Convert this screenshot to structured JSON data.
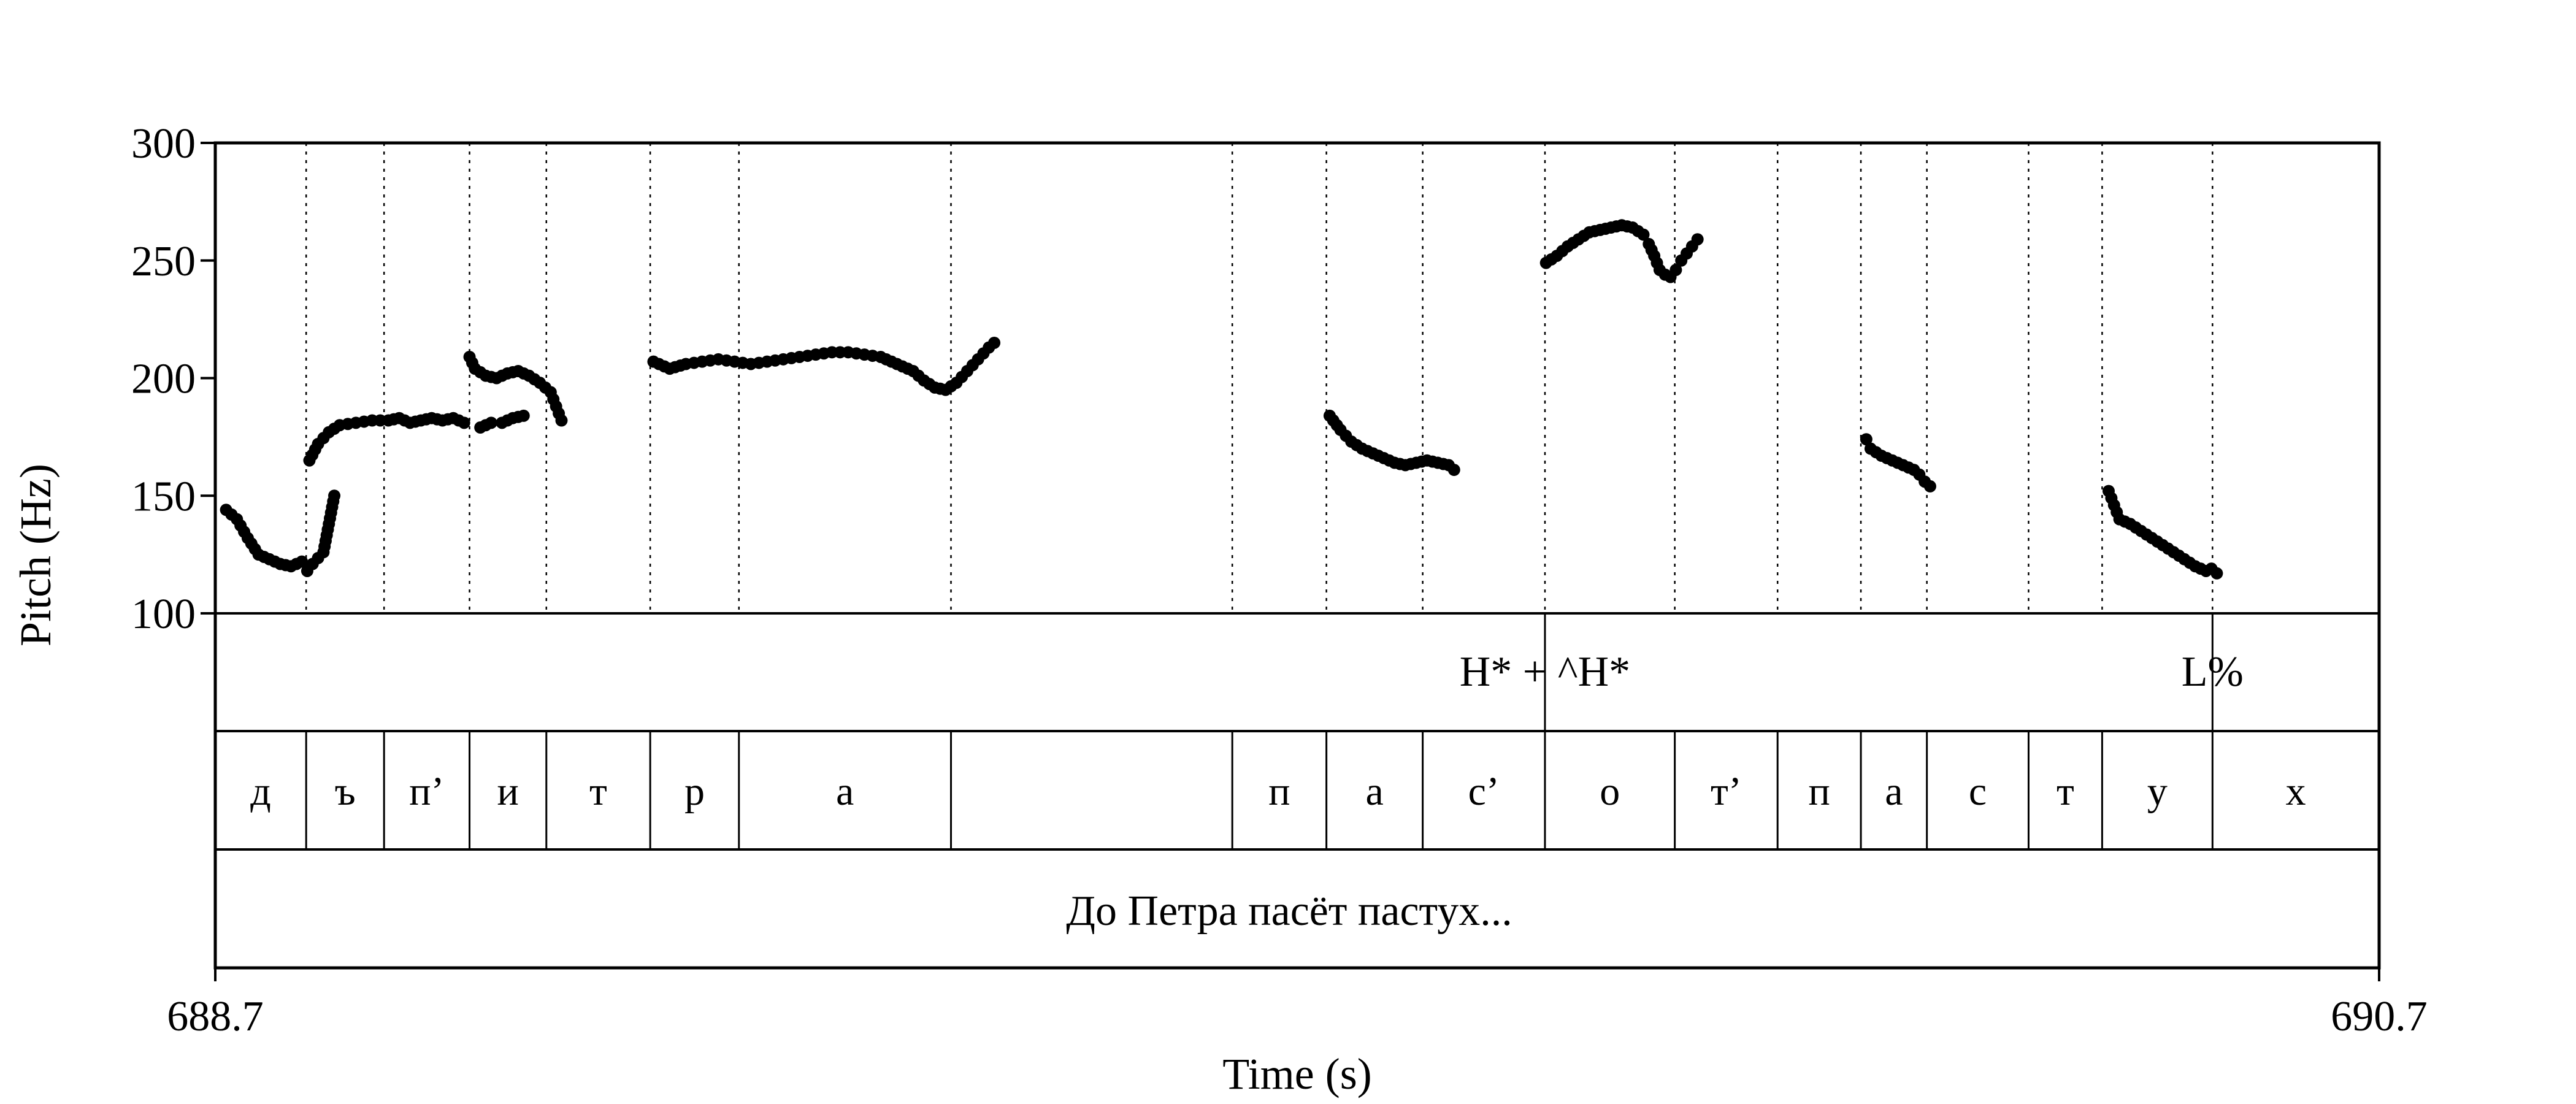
{
  "chart_data": {
    "type": "scatter",
    "title": "",
    "xlabel": "Time (s)",
    "ylabel": "Pitch (Hz)",
    "xlim": [
      688.7,
      690.7
    ],
    "ylim": [
      100,
      300
    ],
    "x_tick_labels": [
      "688.7",
      "690.7"
    ],
    "y_ticks": [
      100,
      150,
      200,
      250,
      300
    ],
    "y_tick_labels": [
      "100",
      "150",
      "200",
      "250",
      "300"
    ],
    "grid": false,
    "tones": [
      {
        "time": 689.929,
        "label": "H* + ^H*"
      },
      {
        "time": 690.546,
        "label": "L%"
      }
    ],
    "segments": [
      {
        "start": 688.7,
        "end": 688.784,
        "label": "д"
      },
      {
        "start": 688.784,
        "end": 688.856,
        "label": "ъ"
      },
      {
        "start": 688.856,
        "end": 688.935,
        "label": "п’"
      },
      {
        "start": 688.935,
        "end": 689.006,
        "label": "и"
      },
      {
        "start": 689.006,
        "end": 689.102,
        "label": "т"
      },
      {
        "start": 689.102,
        "end": 689.184,
        "label": "р"
      },
      {
        "start": 689.184,
        "end": 689.38,
        "label": "а"
      },
      {
        "start": 689.38,
        "end": 689.64,
        "label": ""
      },
      {
        "start": 689.64,
        "end": 689.727,
        "label": "п"
      },
      {
        "start": 689.727,
        "end": 689.816,
        "label": "а"
      },
      {
        "start": 689.816,
        "end": 689.929,
        "label": "с’"
      },
      {
        "start": 689.929,
        "end": 690.049,
        "label": "о"
      },
      {
        "start": 690.049,
        "end": 690.144,
        "label": "т’"
      },
      {
        "start": 690.144,
        "end": 690.221,
        "label": "п"
      },
      {
        "start": 690.221,
        "end": 690.282,
        "label": "а"
      },
      {
        "start": 690.282,
        "end": 690.376,
        "label": "с"
      },
      {
        "start": 690.376,
        "end": 690.444,
        "label": "т"
      },
      {
        "start": 690.444,
        "end": 690.546,
        "label": "у"
      },
      {
        "start": 690.546,
        "end": 690.7,
        "label": "х"
      }
    ],
    "sentence": "До Петра пасёт пастух...",
    "pitch_segments": [
      [
        [
          688.71,
          144
        ],
        [
          688.72,
          140
        ],
        [
          688.73,
          132
        ],
        [
          688.74,
          125
        ],
        [
          688.75,
          123
        ],
        [
          688.76,
          121
        ],
        [
          688.77,
          120
        ],
        [
          688.78,
          122
        ],
        [
          688.785,
          118
        ],
        [
          688.79,
          121
        ],
        [
          688.8,
          126
        ],
        [
          688.805,
          138
        ],
        [
          688.81,
          150
        ]
      ],
      [
        [
          688.787,
          165
        ],
        [
          688.795,
          172
        ],
        [
          688.805,
          177
        ],
        [
          688.815,
          180
        ],
        [
          688.83,
          181
        ],
        [
          688.845,
          182
        ],
        [
          688.86,
          182
        ],
        [
          688.87,
          183
        ],
        [
          688.88,
          181
        ],
        [
          688.89,
          182
        ],
        [
          688.9,
          183
        ],
        [
          688.91,
          182
        ],
        [
          688.92,
          183
        ],
        [
          688.93,
          181
        ]
      ],
      [
        [
          688.945,
          179
        ],
        [
          688.955,
          181
        ],
        [
          688.965,
          181
        ],
        [
          688.975,
          183
        ],
        [
          688.985,
          184
        ]
      ],
      [
        [
          688.935,
          209
        ],
        [
          688.94,
          204
        ],
        [
          688.95,
          201
        ],
        [
          688.96,
          200
        ],
        [
          688.97,
          202
        ],
        [
          688.98,
          203
        ],
        [
          688.99,
          201
        ],
        [
          689.0,
          198
        ],
        [
          689.01,
          194
        ],
        [
          689.015,
          188
        ],
        [
          689.02,
          182
        ]
      ],
      [
        [
          689.105,
          207
        ],
        [
          689.12,
          204
        ],
        [
          689.135,
          206
        ],
        [
          689.15,
          207
        ],
        [
          689.165,
          208
        ],
        [
          689.18,
          207
        ],
        [
          689.195,
          206
        ],
        [
          689.21,
          207
        ],
        [
          689.225,
          208
        ],
        [
          689.24,
          209
        ],
        [
          689.255,
          210
        ],
        [
          689.27,
          211
        ],
        [
          689.285,
          211
        ],
        [
          689.3,
          210
        ],
        [
          689.315,
          209
        ],
        [
          689.33,
          206
        ],
        [
          689.345,
          203
        ],
        [
          689.355,
          199
        ],
        [
          689.365,
          196
        ],
        [
          689.375,
          195
        ],
        [
          689.385,
          198
        ],
        [
          689.395,
          203
        ],
        [
          689.405,
          208
        ],
        [
          689.415,
          213
        ],
        [
          689.42,
          215
        ]
      ],
      [
        [
          689.73,
          184
        ],
        [
          689.74,
          178
        ],
        [
          689.75,
          173
        ],
        [
          689.76,
          170
        ],
        [
          689.77,
          168
        ],
        [
          689.78,
          166
        ],
        [
          689.79,
          164
        ],
        [
          689.8,
          163
        ],
        [
          689.81,
          164
        ],
        [
          689.82,
          165
        ],
        [
          689.83,
          164
        ],
        [
          689.84,
          163
        ],
        [
          689.845,
          161
        ]
      ],
      [
        [
          689.93,
          249
        ],
        [
          689.94,
          252
        ],
        [
          689.95,
          256
        ],
        [
          689.96,
          259
        ],
        [
          689.97,
          262
        ],
        [
          689.98,
          263
        ],
        [
          689.99,
          264
        ],
        [
          690.0,
          265
        ],
        [
          690.01,
          264
        ],
        [
          690.02,
          261
        ],
        [
          690.025,
          257
        ],
        [
          690.03,
          252
        ],
        [
          690.035,
          246
        ],
        [
          690.04,
          244
        ],
        [
          690.045,
          243
        ],
        [
          690.05,
          246
        ],
        [
          690.055,
          250
        ],
        [
          690.06,
          253
        ],
        [
          690.065,
          256
        ],
        [
          690.07,
          259
        ]
      ],
      [
        [
          690.226,
          174
        ],
        [
          690.23,
          170
        ],
        [
          690.24,
          167
        ],
        [
          690.25,
          165
        ],
        [
          690.26,
          163
        ],
        [
          690.27,
          161
        ],
        [
          690.275,
          159
        ],
        [
          690.28,
          156
        ],
        [
          690.285,
          154
        ]
      ],
      [
        [
          690.45,
          152
        ],
        [
          690.455,
          146
        ],
        [
          690.46,
          140
        ],
        [
          690.47,
          138
        ],
        [
          690.48,
          135
        ],
        [
          690.49,
          132
        ],
        [
          690.5,
          129
        ],
        [
          690.51,
          126
        ],
        [
          690.52,
          123
        ],
        [
          690.53,
          120
        ],
        [
          690.54,
          118
        ],
        [
          690.545,
          119
        ],
        [
          690.55,
          117
        ]
      ]
    ]
  }
}
